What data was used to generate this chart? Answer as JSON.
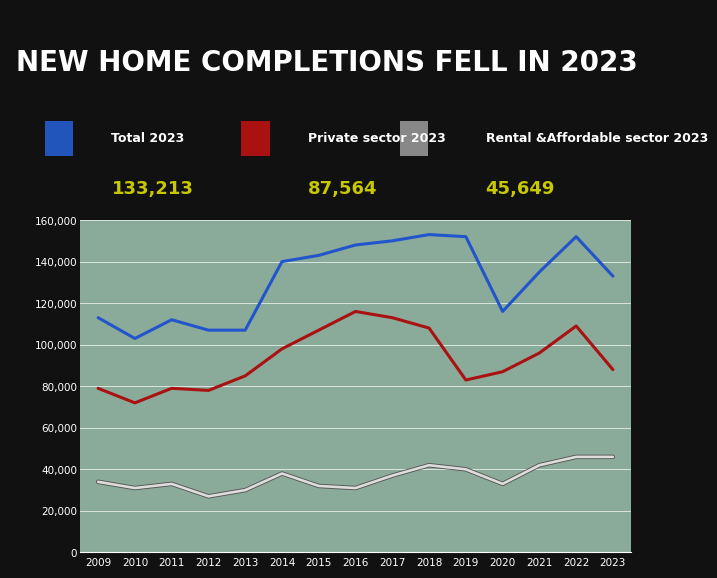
{
  "title": "NEW HOME COMPLETIONS FELL IN 2023",
  "title_bg": "#111111",
  "title_color": "#ffffff",
  "legend_labels": [
    "Total 2023",
    "Private sector 2023",
    "Rental &Affordable sector 2023"
  ],
  "legend_values": [
    "133,213",
    "87,564",
    "45,649"
  ],
  "legend_value_color": "#c8c800",
  "legend_label_color": "#ffffff",
  "legend_marker_colors": [
    "#2255bb",
    "#aa1111",
    "#888888"
  ],
  "years": [
    2009,
    2010,
    2011,
    2012,
    2013,
    2014,
    2015,
    2016,
    2017,
    2018,
    2019,
    2020,
    2021,
    2022,
    2023
  ],
  "total": [
    113000,
    103000,
    112000,
    107000,
    107000,
    140000,
    143000,
    148000,
    150000,
    153000,
    152000,
    116000,
    135000,
    152000,
    133000
  ],
  "private": [
    79000,
    72000,
    79000,
    78000,
    85000,
    98000,
    107000,
    116000,
    113000,
    108000,
    83000,
    87000,
    96000,
    109000,
    88000
  ],
  "rental": [
    34000,
    31000,
    33000,
    27000,
    30000,
    38000,
    32000,
    31000,
    37000,
    42000,
    40000,
    33000,
    42000,
    46000,
    46000
  ],
  "total_color": "#2255cc",
  "private_color": "#aa1111",
  "rental_dark": "#555555",
  "rental_light": "#dddddd",
  "chart_bg": "#8aaa9a",
  "ylim": [
    0,
    160000
  ],
  "yticks": [
    0,
    20000,
    40000,
    60000,
    80000,
    100000,
    120000,
    140000,
    160000
  ],
  "grid_color": "#ffffff",
  "tick_color": "#ffffff",
  "linewidth": 2.2,
  "title_fontsize": 20,
  "legend_label_fontsize": 9,
  "legend_value_fontsize": 13,
  "xtick_fontsize": 7.5,
  "ytick_fontsize": 7.5
}
